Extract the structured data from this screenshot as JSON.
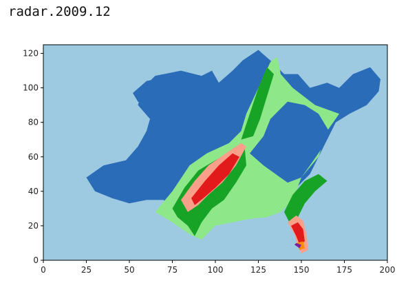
{
  "header": {
    "title": "radar.2009.12"
  },
  "chart_data": {
    "type": "heatmap",
    "title": "radar.2009.12",
    "xlabel": "",
    "ylabel": "",
    "xlim": [
      0,
      200
    ],
    "ylim": [
      0,
      125
    ],
    "xticks": [
      0,
      25,
      50,
      75,
      100,
      125,
      150,
      175,
      200
    ],
    "yticks": [
      0,
      20,
      40,
      60,
      80,
      100,
      120
    ],
    "grid": false,
    "colors": {
      "background": "#9ecae1",
      "level_1": "#2b6cb8",
      "level_2": "#8ee88a",
      "level_3": "#16a326",
      "level_4": "#f8a08a",
      "level_5": "#e31a1c",
      "level_6": "#ff8c00",
      "level_7": "#7b1fa2"
    },
    "regions": [
      {
        "level": "level_1",
        "points": [
          [
            25,
            48
          ],
          [
            35,
            55
          ],
          [
            48,
            58
          ],
          [
            55,
            66
          ],
          [
            60,
            75
          ],
          [
            62,
            82
          ],
          [
            55,
            90
          ],
          [
            58,
            100
          ],
          [
            65,
            107
          ],
          [
            80,
            110
          ],
          [
            92,
            107
          ],
          [
            98,
            110
          ],
          [
            102,
            103
          ],
          [
            110,
            110
          ],
          [
            116,
            116
          ],
          [
            125,
            122
          ],
          [
            133,
            115
          ],
          [
            140,
            108
          ],
          [
            148,
            108
          ],
          [
            155,
            100
          ],
          [
            165,
            103
          ],
          [
            172,
            100
          ],
          [
            180,
            108
          ],
          [
            190,
            112
          ],
          [
            196,
            105
          ],
          [
            195,
            98
          ],
          [
            188,
            90
          ],
          [
            178,
            85
          ],
          [
            170,
            80
          ],
          [
            165,
            70
          ],
          [
            160,
            60
          ],
          [
            155,
            50
          ],
          [
            150,
            45
          ],
          [
            145,
            40
          ],
          [
            138,
            35
          ],
          [
            130,
            30
          ],
          [
            120,
            28
          ],
          [
            110,
            30
          ],
          [
            100,
            28
          ],
          [
            92,
            22
          ],
          [
            85,
            25
          ],
          [
            75,
            28
          ],
          [
            70,
            35
          ],
          [
            60,
            35
          ],
          [
            50,
            33
          ],
          [
            40,
            36
          ],
          [
            30,
            40
          ]
        ]
      },
      {
        "level": "level_1",
        "points": [
          [
            52,
            97
          ],
          [
            60,
            104
          ],
          [
            70,
            106
          ],
          [
            78,
            102
          ],
          [
            84,
            96
          ],
          [
            80,
            88
          ],
          [
            72,
            86
          ],
          [
            62,
            88
          ],
          [
            55,
            92
          ]
        ]
      },
      {
        "level": "level_2",
        "points": [
          [
            65,
            28
          ],
          [
            75,
            40
          ],
          [
            85,
            55
          ],
          [
            95,
            62
          ],
          [
            108,
            68
          ],
          [
            115,
            75
          ],
          [
            118,
            85
          ],
          [
            125,
            100
          ],
          [
            132,
            115
          ],
          [
            136,
            118
          ],
          [
            138,
            108
          ],
          [
            145,
            100
          ],
          [
            158,
            90
          ],
          [
            172,
            85
          ],
          [
            165,
            75
          ],
          [
            160,
            60
          ],
          [
            150,
            48
          ],
          [
            145,
            35
          ],
          [
            138,
            28
          ],
          [
            130,
            25
          ],
          [
            120,
            24
          ],
          [
            110,
            22
          ],
          [
            100,
            20
          ],
          [
            92,
            12
          ],
          [
            85,
            15
          ],
          [
            75,
            22
          ]
        ]
      },
      {
        "level": "level_1",
        "points": [
          [
            120,
            62
          ],
          [
            128,
            72
          ],
          [
            132,
            82
          ],
          [
            142,
            92
          ],
          [
            152,
            90
          ],
          [
            160,
            85
          ],
          [
            166,
            75
          ],
          [
            162,
            65
          ],
          [
            155,
            55
          ],
          [
            150,
            48
          ],
          [
            142,
            45
          ],
          [
            135,
            50
          ],
          [
            128,
            55
          ]
        ]
      },
      {
        "level": "level_3",
        "points": [
          [
            75,
            30
          ],
          [
            82,
            42
          ],
          [
            90,
            52
          ],
          [
            100,
            58
          ],
          [
            110,
            63
          ],
          [
            117,
            66
          ],
          [
            118,
            55
          ],
          [
            112,
            45
          ],
          [
            105,
            35
          ],
          [
            98,
            30
          ],
          [
            92,
            22
          ],
          [
            88,
            14
          ],
          [
            84,
            20
          ],
          [
            78,
            25
          ]
        ]
      },
      {
        "level": "level_3",
        "points": [
          [
            140,
            28
          ],
          [
            145,
            38
          ],
          [
            152,
            46
          ],
          [
            160,
            50
          ],
          [
            165,
            46
          ],
          [
            158,
            40
          ],
          [
            152,
            33
          ],
          [
            148,
            25
          ],
          [
            144,
            20
          ]
        ]
      },
      {
        "level": "level_3",
        "points": [
          [
            115,
            70
          ],
          [
            120,
            85
          ],
          [
            125,
            100
          ],
          [
            130,
            112
          ],
          [
            134,
            108
          ],
          [
            130,
            95
          ],
          [
            126,
            82
          ],
          [
            122,
            72
          ]
        ]
      },
      {
        "level": "level_4",
        "points": [
          [
            80,
            35
          ],
          [
            88,
            46
          ],
          [
            96,
            55
          ],
          [
            106,
            62
          ],
          [
            115,
            68
          ],
          [
            118,
            66
          ],
          [
            112,
            55
          ],
          [
            104,
            45
          ],
          [
            96,
            38
          ],
          [
            90,
            32
          ],
          [
            84,
            28
          ]
        ]
      },
      {
        "level": "level_5",
        "points": [
          [
            86,
            36
          ],
          [
            94,
            46
          ],
          [
            102,
            55
          ],
          [
            110,
            62
          ],
          [
            114,
            60
          ],
          [
            108,
            50
          ],
          [
            100,
            42
          ],
          [
            93,
            36
          ],
          [
            88,
            32
          ]
        ]
      },
      {
        "level": "level_4",
        "points": [
          [
            142,
            22
          ],
          [
            146,
            15
          ],
          [
            148,
            8
          ],
          [
            150,
            4
          ],
          [
            154,
            6
          ],
          [
            153,
            15
          ],
          [
            151,
            23
          ],
          [
            147,
            26
          ]
        ]
      },
      {
        "level": "level_5",
        "points": [
          [
            144,
            20
          ],
          [
            147,
            14
          ],
          [
            149,
            9
          ],
          [
            152,
            11
          ],
          [
            151,
            18
          ],
          [
            148,
            22
          ]
        ]
      },
      {
        "level": "level_6",
        "points": [
          [
            147,
            10
          ],
          [
            149,
            6
          ],
          [
            152,
            7
          ],
          [
            151,
            11
          ]
        ]
      },
      {
        "level": "level_7",
        "points": [
          [
            146,
            9
          ],
          [
            149,
            7
          ],
          [
            150,
            9
          ],
          [
            147,
            10
          ]
        ]
      }
    ]
  }
}
